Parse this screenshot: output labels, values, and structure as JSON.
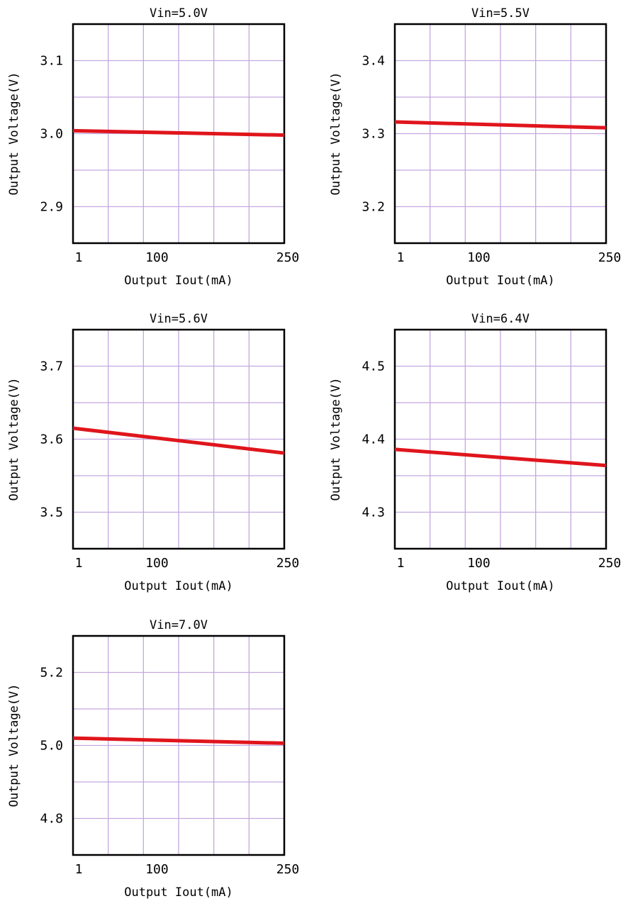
{
  "colors": {
    "line": "#e0151c",
    "grid": "#c4a8e0",
    "frame": "#000000",
    "text": "#000000"
  },
  "chart_data": [
    {
      "type": "line",
      "title": "Vin=5.0V",
      "xlabel": "Output Iout(mA)",
      "ylabel": "Output Voltage(V)",
      "x_ticks": [
        "1",
        "100",
        "250"
      ],
      "y_ticks": [
        "2.9",
        "3.0",
        "3.1"
      ],
      "ylim": [
        2.85,
        3.15
      ],
      "grid": true,
      "series": [
        {
          "x": [
            1,
            250
          ],
          "y": [
            3.004,
            2.998
          ]
        }
      ]
    },
    {
      "type": "line",
      "title": "Vin=5.5V",
      "xlabel": "Output Iout(mA)",
      "ylabel": "Output Voltage(V)",
      "x_ticks": [
        "1",
        "100",
        "250"
      ],
      "y_ticks": [
        "3.2",
        "3.3",
        "3.4"
      ],
      "ylim": [
        3.15,
        3.45
      ],
      "grid": true,
      "series": [
        {
          "x": [
            1,
            250
          ],
          "y": [
            3.316,
            3.308
          ]
        }
      ]
    },
    {
      "type": "line",
      "title": "Vin=5.6V",
      "xlabel": "Output Iout(mA)",
      "ylabel": "Output Voltage(V)",
      "x_ticks": [
        "1",
        "100",
        "250"
      ],
      "y_ticks": [
        "3.5",
        "3.6",
        "3.7"
      ],
      "ylim": [
        3.45,
        3.75
      ],
      "grid": true,
      "series": [
        {
          "x": [
            1,
            250
          ],
          "y": [
            3.615,
            3.581
          ]
        }
      ]
    },
    {
      "type": "line",
      "title": "Vin=6.4V",
      "xlabel": "Output Iout(mA)",
      "ylabel": "Output Voltage(V)",
      "x_ticks": [
        "1",
        "100",
        "250"
      ],
      "y_ticks": [
        "4.3",
        "4.4",
        "4.5"
      ],
      "ylim": [
        4.25,
        4.55
      ],
      "grid": true,
      "series": [
        {
          "x": [
            1,
            250
          ],
          "y": [
            4.386,
            4.364
          ]
        }
      ]
    },
    {
      "type": "line",
      "title": "Vin=7.0V",
      "xlabel": "Output Iout(mA)",
      "ylabel": "Output Voltage(V)",
      "x_ticks": [
        "1",
        "100",
        "250"
      ],
      "y_ticks": [
        "4.8",
        "5.0",
        "5.2"
      ],
      "ylim": [
        4.7,
        5.3
      ],
      "grid": true,
      "series": [
        {
          "x": [
            1,
            250
          ],
          "y": [
            5.02,
            5.006
          ]
        }
      ]
    }
  ]
}
